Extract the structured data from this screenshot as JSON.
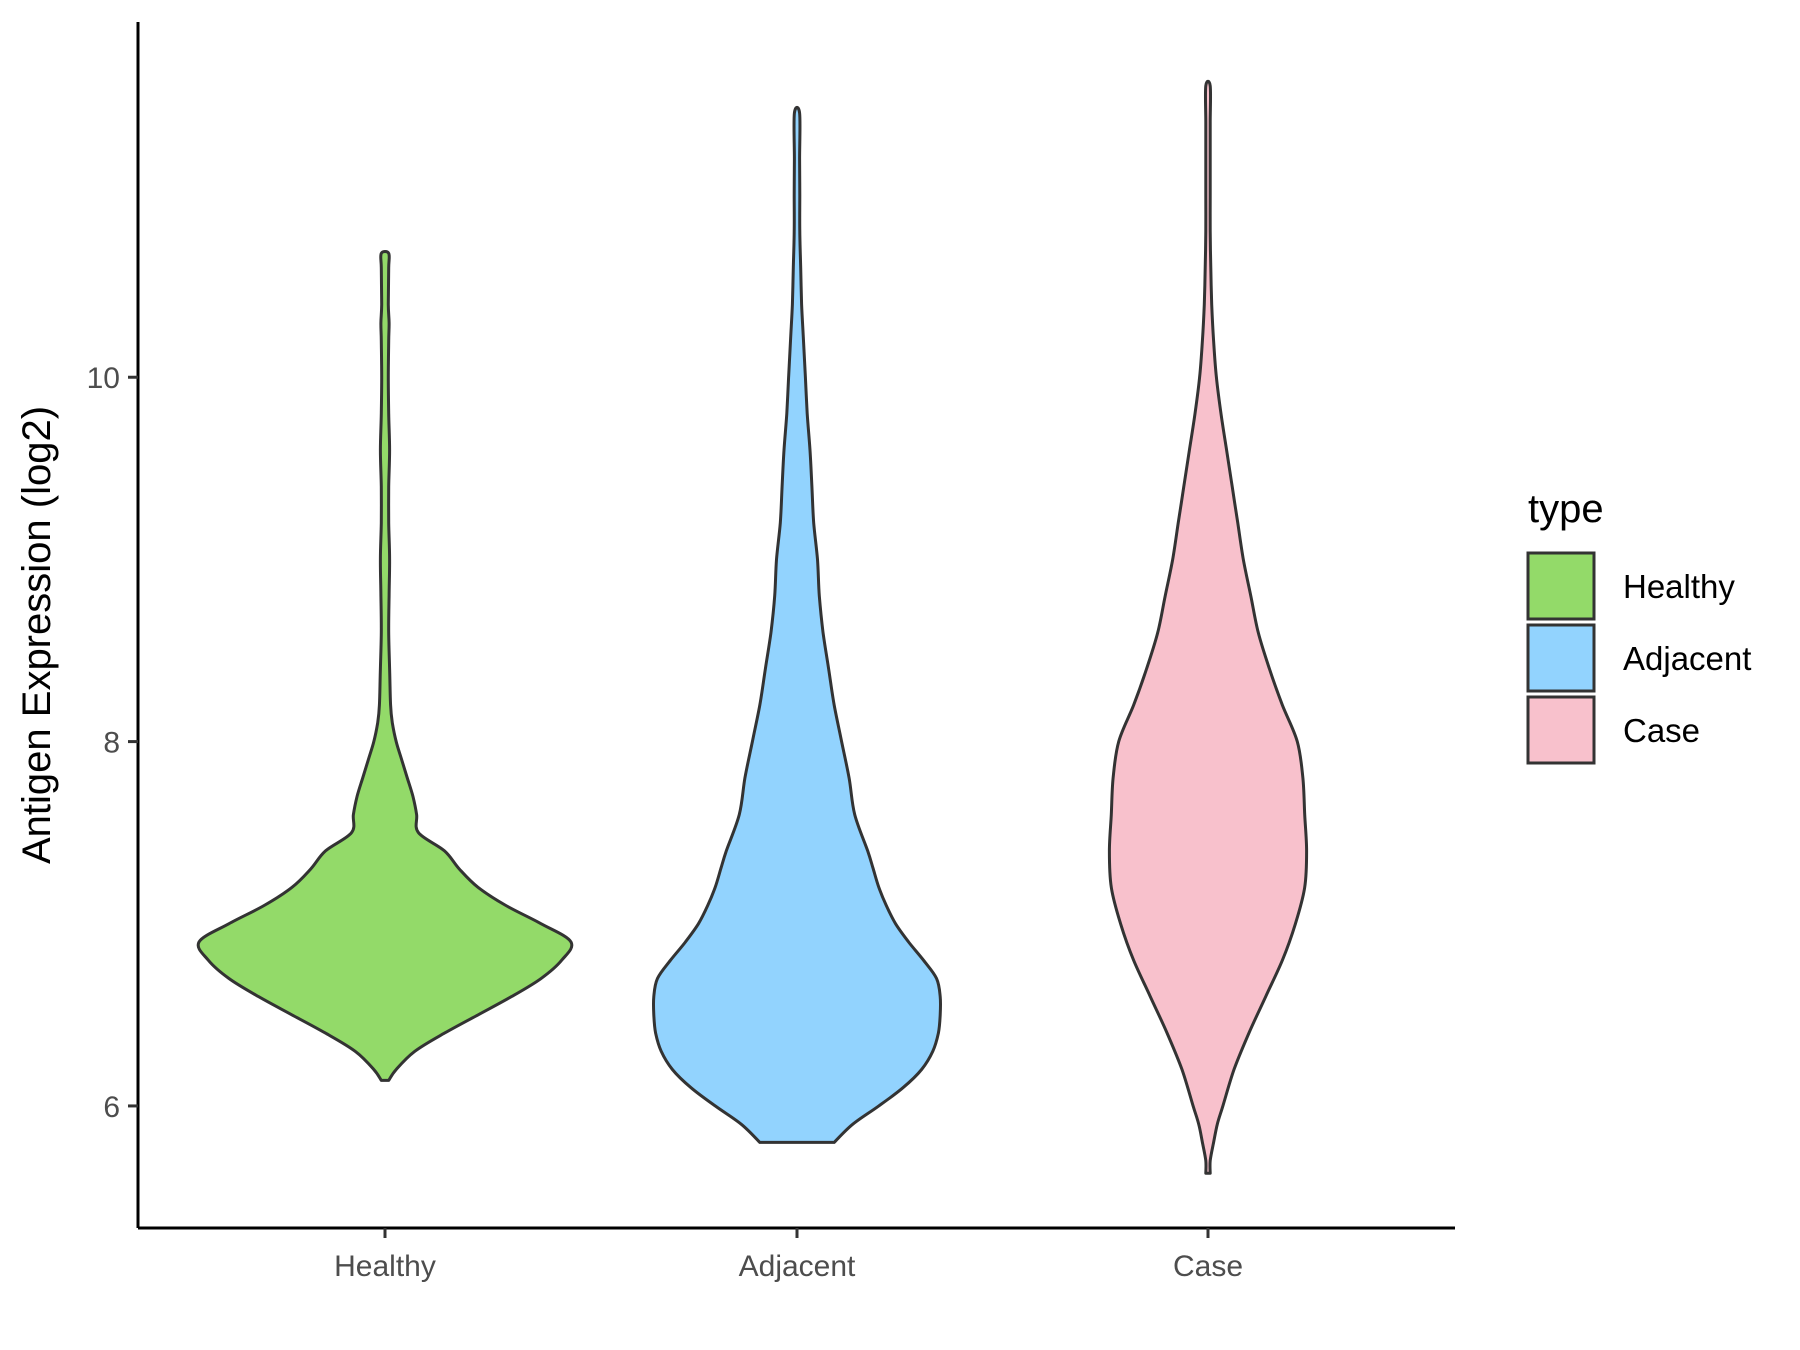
{
  "chart_data": {
    "type": "violin",
    "title": "",
    "xlabel": "",
    "ylabel": "Antigen Expression (log2)",
    "categories": [
      "Healthy",
      "Adjacent",
      "Case"
    ],
    "yticks": [
      6,
      8,
      10
    ],
    "ylim": [
      5.33,
      11.95
    ],
    "grid": false,
    "legend": {
      "title": "type",
      "placement": "right",
      "entries": [
        "Healthy",
        "Adjacent",
        "Case"
      ]
    },
    "colors": {
      "Healthy": "#93DA69",
      "Adjacent": "#92D3FE",
      "Case": "#F8C1CC",
      "outline": "#333333"
    },
    "series": [
      {
        "category": "Healthy",
        "min": 6.14,
        "max": 10.68,
        "density_profile": [
          [
            6.14,
            0.02
          ],
          [
            6.2,
            0.06
          ],
          [
            6.3,
            0.16
          ],
          [
            6.4,
            0.32
          ],
          [
            6.5,
            0.5
          ],
          [
            6.6,
            0.68
          ],
          [
            6.7,
            0.84
          ],
          [
            6.8,
            0.95
          ],
          [
            6.9,
            1.0
          ],
          [
            7.0,
            0.84
          ],
          [
            7.1,
            0.65
          ],
          [
            7.2,
            0.5
          ],
          [
            7.3,
            0.4
          ],
          [
            7.4,
            0.32
          ],
          [
            7.5,
            0.18
          ],
          [
            7.6,
            0.17
          ],
          [
            7.7,
            0.15
          ],
          [
            7.8,
            0.12
          ],
          [
            7.9,
            0.09
          ],
          [
            8.0,
            0.06
          ],
          [
            8.1,
            0.04
          ],
          [
            8.2,
            0.03
          ],
          [
            8.4,
            0.025
          ],
          [
            8.6,
            0.02
          ],
          [
            8.8,
            0.022
          ],
          [
            9.0,
            0.025
          ],
          [
            9.2,
            0.02
          ],
          [
            9.4,
            0.02
          ],
          [
            9.6,
            0.025
          ],
          [
            9.8,
            0.02
          ],
          [
            10.0,
            0.018
          ],
          [
            10.2,
            0.02
          ],
          [
            10.3,
            0.022
          ],
          [
            10.4,
            0.018
          ],
          [
            10.6,
            0.02
          ],
          [
            10.68,
            0.02
          ]
        ]
      },
      {
        "category": "Adjacent",
        "min": 5.8,
        "max": 11.45,
        "density_profile": [
          [
            5.8,
            0.2
          ],
          [
            5.9,
            0.3
          ],
          [
            6.0,
            0.44
          ],
          [
            6.1,
            0.57
          ],
          [
            6.2,
            0.67
          ],
          [
            6.3,
            0.73
          ],
          [
            6.4,
            0.76
          ],
          [
            6.5,
            0.77
          ],
          [
            6.6,
            0.77
          ],
          [
            6.7,
            0.75
          ],
          [
            6.8,
            0.68
          ],
          [
            6.9,
            0.6
          ],
          [
            7.0,
            0.53
          ],
          [
            7.1,
            0.48
          ],
          [
            7.2,
            0.44
          ],
          [
            7.3,
            0.41
          ],
          [
            7.4,
            0.38
          ],
          [
            7.6,
            0.31
          ],
          [
            7.8,
            0.28
          ],
          [
            8.0,
            0.24
          ],
          [
            8.2,
            0.2
          ],
          [
            8.4,
            0.17
          ],
          [
            8.6,
            0.14
          ],
          [
            8.8,
            0.12
          ],
          [
            9.0,
            0.11
          ],
          [
            9.2,
            0.09
          ],
          [
            9.4,
            0.08
          ],
          [
            9.6,
            0.07
          ],
          [
            9.8,
            0.055
          ],
          [
            10.0,
            0.045
          ],
          [
            10.2,
            0.035
          ],
          [
            10.4,
            0.025
          ],
          [
            10.6,
            0.02
          ],
          [
            10.8,
            0.015
          ],
          [
            11.0,
            0.015
          ],
          [
            11.2,
            0.014
          ],
          [
            11.45,
            0.014
          ]
        ]
      },
      {
        "category": "Case",
        "min": 5.63,
        "max": 11.6,
        "density_profile": [
          [
            5.63,
            0.0
          ],
          [
            5.7,
            0.01
          ],
          [
            5.8,
            0.03
          ],
          [
            5.9,
            0.05
          ],
          [
            6.0,
            0.08
          ],
          [
            6.2,
            0.14
          ],
          [
            6.4,
            0.22
          ],
          [
            6.6,
            0.31
          ],
          [
            6.8,
            0.4
          ],
          [
            7.0,
            0.47
          ],
          [
            7.2,
            0.52
          ],
          [
            7.4,
            0.53
          ],
          [
            7.6,
            0.52
          ],
          [
            7.8,
            0.51
          ],
          [
            8.0,
            0.48
          ],
          [
            8.2,
            0.4
          ],
          [
            8.4,
            0.33
          ],
          [
            8.6,
            0.27
          ],
          [
            8.8,
            0.23
          ],
          [
            9.0,
            0.19
          ],
          [
            9.2,
            0.16
          ],
          [
            9.4,
            0.13
          ],
          [
            9.6,
            0.1
          ],
          [
            9.8,
            0.07
          ],
          [
            10.0,
            0.045
          ],
          [
            10.2,
            0.03
          ],
          [
            10.4,
            0.02
          ],
          [
            10.6,
            0.015
          ],
          [
            10.8,
            0.012
          ],
          [
            11.0,
            0.01
          ],
          [
            11.2,
            0.01
          ],
          [
            11.4,
            0.01
          ],
          [
            11.6,
            0.008
          ]
        ]
      }
    ]
  }
}
